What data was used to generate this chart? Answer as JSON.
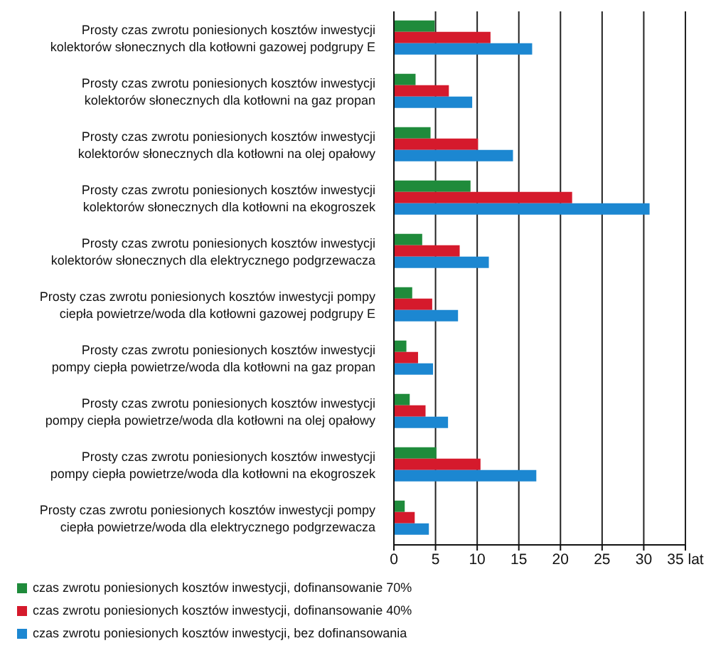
{
  "chart_data": {
    "type": "bar",
    "orientation": "horizontal",
    "categories": [
      "Prosty czas zwrotu poniesionych kosztów inwestycji kolektorów słonecznych dla kotłowni gazowej podgrupy E",
      "Prosty czas zwrotu poniesionych kosztów inwestycji kolektorów słonecznych dla kotłowni na gaz propan",
      "Prosty czas zwrotu poniesionych kosztów inwestycji kolektorów słonecznych dla kotłowni na olej opałowy",
      "Prosty czas zwrotu poniesionych kosztów inwestycji kolektorów słonecznych dla kotłowni na ekogroszek",
      "Prosty czas zwrotu poniesionych kosztów inwestycji kolektorów słonecznych dla elektrycznego podgrzewacza",
      "Prosty czas zwrotu poniesionych kosztów inwestycji pompy ciepła powietrze/woda dla kotłowni gazowej podgrupy E",
      "Prosty czas zwrotu poniesionych kosztów inwestycji pompy ciepła powietrze/woda dla kotłowni na gaz propan",
      "Prosty czas zwrotu poniesionych kosztów inwestycji pompy ciepła powietrze/woda dla kotłowni na olej opałowy",
      "Prosty czas zwrotu poniesionych kosztów inwestycji pompy ciepła powietrze/woda dla kotłowni na ekogroszek",
      "Prosty czas zwrotu poniesionych kosztów inwestycji pompy ciepła powietrze/woda dla elektrycznego podgrzewacza"
    ],
    "series": [
      {
        "name": "czas zwrotu poniesionych kosztów inwestycji, dofinansowanie 70%",
        "color": "#1f8b3b",
        "values": [
          4.9,
          2.6,
          4.4,
          9.2,
          3.4,
          2.2,
          1.5,
          1.9,
          5.1,
          1.3
        ]
      },
      {
        "name": "czas zwrotu poniesionych kosztów inwestycji, dofinansowanie 40%",
        "color": "#d51a2c",
        "values": [
          11.6,
          6.6,
          10.1,
          21.4,
          7.9,
          4.6,
          2.9,
          3.8,
          10.4,
          2.5
        ]
      },
      {
        "name": "czas zwrotu poniesionych kosztów inwestycji, bez dofinansowania",
        "color": "#1c87d1",
        "values": [
          16.6,
          9.4,
          14.3,
          30.7,
          11.4,
          7.7,
          4.7,
          6.5,
          17.1,
          4.2
        ]
      }
    ],
    "xlim": [
      0,
      35
    ],
    "xticks": [
      0,
      5,
      10,
      15,
      20,
      25,
      30,
      {
        "value": 35,
        "label": "35 lat"
      }
    ],
    "grid": "x",
    "legend": "bottom left"
  }
}
